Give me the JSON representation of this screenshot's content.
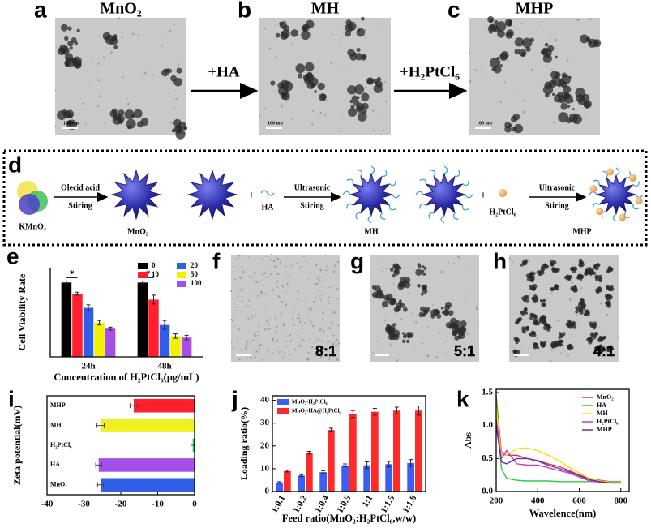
{
  "top_row": [
    {
      "letter": "a",
      "title": "MnO₂",
      "scale_bar": "100 nm"
    },
    {
      "letter": "b",
      "title": "MH",
      "scale_bar": "100 nm"
    },
    {
      "letter": "c",
      "title": "MHP",
      "scale_bar": "100 nm"
    }
  ],
  "arrows": [
    "+HA",
    "+H₂PtCl₆"
  ],
  "scheme": {
    "letter": "d",
    "precursor": "KMnO₄",
    "step1": {
      "above": "Olecid acid",
      "below": "Stiring"
    },
    "product1": "MnO₂",
    "plus1": "+",
    "reagent1": "HA",
    "step2": {
      "above": "Ultrasonic",
      "below": "Stiring"
    },
    "product2": "MH",
    "plus2": "+",
    "reagent2": "H₂PtCl₆",
    "step3": {
      "above": "Ultrasonic",
      "below": "Stiring"
    },
    "product3": "MHP"
  },
  "ratio_images": [
    {
      "letter": "f",
      "ratio": "8:1"
    },
    {
      "letter": "g",
      "ratio": "5:1"
    },
    {
      "letter": "h",
      "ratio": "4:1"
    }
  ],
  "chart_data": [
    {
      "panel": "e",
      "type": "bar",
      "xlabel": "Concentration of H₂PtCl₆(μg/mL)",
      "ylabel": "Cell Viability Rate",
      "categories": [
        "24h",
        "48h"
      ],
      "ylim": [
        0,
        1.2
      ],
      "legend": "upper right",
      "annotations": [
        "*",
        "*"
      ],
      "series": [
        {
          "name": "0",
          "color": "#000000",
          "values": [
            1.0,
            1.0
          ],
          "errors": [
            0.02,
            0.02
          ]
        },
        {
          "name": "10",
          "color": "#ff1f2d",
          "values": [
            0.85,
            0.77
          ],
          "errors": [
            0.02,
            0.06
          ]
        },
        {
          "name": "20",
          "color": "#2f5ee8",
          "values": [
            0.66,
            0.43
          ],
          "errors": [
            0.04,
            0.06
          ]
        },
        {
          "name": "50",
          "color": "#f2f200",
          "values": [
            0.46,
            0.28
          ],
          "errors": [
            0.03,
            0.03
          ]
        },
        {
          "name": "100",
          "color": "#a64ee8",
          "values": [
            0.38,
            0.26
          ],
          "errors": [
            0.02,
            0.03
          ]
        }
      ]
    },
    {
      "panel": "i",
      "type": "barh",
      "ylabel": "Zeta potential(mV)",
      "categories": [
        "MHP",
        "MH",
        "H₂PtCl₆",
        "HA",
        "MnO₂"
      ],
      "values": [
        -16.5,
        -25.5,
        -0.5,
        -26,
        -25.5
      ],
      "errors": [
        1,
        1,
        0.5,
        0.8,
        0.8
      ],
      "colors": [
        "#ff1f2d",
        "#f0f020",
        "#22c55e",
        "#a64ee8",
        "#2f5ee8"
      ],
      "xlim": [
        -40,
        0
      ],
      "xticks": [
        -40,
        -30,
        -20,
        -10,
        0
      ]
    },
    {
      "panel": "j",
      "type": "bar",
      "xlabel": "Feed ratio(MnO₂:H₂PtCl₆,w/w)",
      "ylabel": "Loading ratio(%)",
      "categories": [
        "1:0.1",
        "1:0.2",
        "1:0.4",
        "1:0.5",
        "1:1",
        "1:1.5",
        "1:1.8"
      ],
      "ylim": [
        0,
        42
      ],
      "yticks": [
        0,
        10,
        20,
        30,
        40
      ],
      "legend": "upper left",
      "series": [
        {
          "name": "MnO₂-H₂PtCl₆",
          "color": "#3b5ef5",
          "values": [
            4,
            7,
            8.5,
            11.5,
            11.5,
            12,
            12.5
          ],
          "errors": [
            0.3,
            0.4,
            0.6,
            0.6,
            1.5,
            1.2,
            1.5
          ]
        },
        {
          "name": "MnO₂-HA@H₂PtCl₆",
          "color": "#ff2a2a",
          "values": [
            9,
            17,
            27,
            34,
            35,
            35.5,
            35.5
          ],
          "errors": [
            0.4,
            0.6,
            0.8,
            1.5,
            1.5,
            1.5,
            2
          ]
        }
      ]
    },
    {
      "panel": "k",
      "type": "line",
      "xlabel": "Wavelence(nm)",
      "ylabel": "Abs",
      "x": [
        200,
        225,
        250,
        300,
        350,
        400,
        450,
        500,
        550,
        600,
        650,
        700,
        750,
        800
      ],
      "xlim": [
        200,
        840
      ],
      "xticks": [
        200,
        400,
        600,
        800
      ],
      "ylim": [
        0,
        1.55
      ],
      "yticks": [
        {
          "value": 0,
          "label": "0.0"
        },
        0.5,
        {
          "value": 1,
          "label": "1.0"
        },
        1.5
      ],
      "legend": "upper right",
      "series": [
        {
          "name": "MnO₂",
          "color": "#e0325a",
          "values": [
            1.45,
            0.6,
            0.55,
            0.55,
            0.5,
            0.47,
            0.42,
            0.38,
            0.32,
            0.25,
            0.2,
            0.17,
            0.15,
            0.15
          ]
        },
        {
          "name": "HA",
          "color": "#2ecc40",
          "values": [
            1.45,
            0.35,
            0.2,
            0.17,
            0.16,
            0.16,
            0.16,
            0.15,
            0.15,
            0.15,
            0.15,
            0.15,
            0.15,
            0.15
          ]
        },
        {
          "name": "MH",
          "color": "#f2e600",
          "values": [
            1.3,
            0.55,
            0.55,
            0.65,
            0.66,
            0.62,
            0.55,
            0.47,
            0.37,
            0.28,
            0.2,
            0.16,
            0.14,
            0.14
          ]
        },
        {
          "name": "H₂PtCl₆",
          "color": "#c040c0",
          "values": [
            1.1,
            0.5,
            0.62,
            0.42,
            0.4,
            0.4,
            0.36,
            0.32,
            0.28,
            0.22,
            0.16,
            0.14,
            0.13,
            0.13
          ]
        },
        {
          "name": "MHP",
          "color": "#6a2fa0",
          "values": [
            1.0,
            0.45,
            0.42,
            0.5,
            0.5,
            0.46,
            0.4,
            0.35,
            0.3,
            0.24,
            0.18,
            0.15,
            0.13,
            0.13
          ]
        }
      ]
    }
  ]
}
